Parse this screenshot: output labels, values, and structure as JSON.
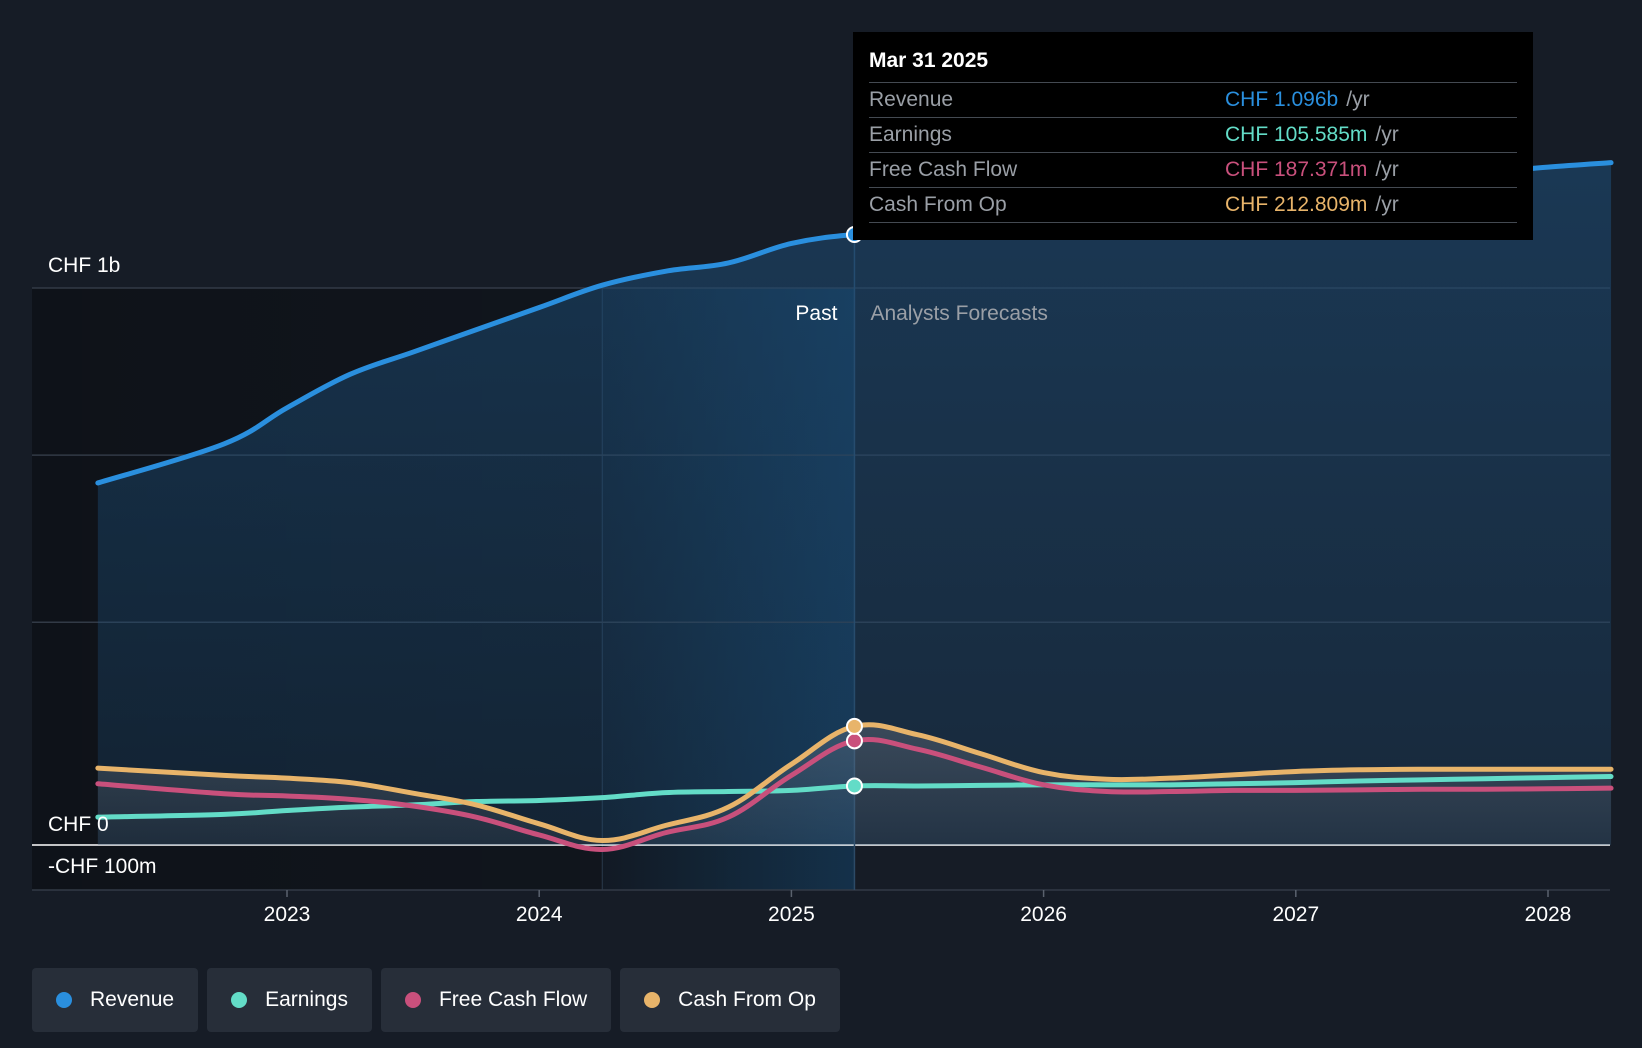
{
  "colors": {
    "revenue": "#2a8fde",
    "earnings": "#63dcc7",
    "free_cash_flow": "#c9507c",
    "cash_from_op": "#e8b46a",
    "background": "#161c26"
  },
  "tooltip": {
    "date": "Mar 31 2025",
    "unit": "/yr",
    "rows": [
      {
        "label": "Revenue",
        "value": "CHF 1.096b",
        "color": "#2a8fde"
      },
      {
        "label": "Earnings",
        "value": "CHF 105.585m",
        "color": "#63dcc7"
      },
      {
        "label": "Free Cash Flow",
        "value": "CHF 187.371m",
        "color": "#c9507c"
      },
      {
        "label": "Cash From Op",
        "value": "CHF 212.809m",
        "color": "#e8b46a"
      }
    ]
  },
  "legend": [
    {
      "label": "Revenue",
      "color": "#2a8fde",
      "icon": "revenue-dot-icon"
    },
    {
      "label": "Earnings",
      "color": "#63dcc7",
      "icon": "earnings-dot-icon"
    },
    {
      "label": "Free Cash Flow",
      "color": "#c9507c",
      "icon": "free-cash-flow-dot-icon"
    },
    {
      "label": "Cash From Op",
      "color": "#e8b46a",
      "icon": "cash-from-op-dot-icon"
    }
  ],
  "chart_data": {
    "type": "line",
    "y_unit": "CHF m",
    "ylim": [
      -100,
      1300
    ],
    "y_ticks": [
      {
        "value": 1000,
        "label": "CHF 1b"
      },
      {
        "value": 0,
        "label": "CHF 0"
      },
      {
        "value": -100,
        "label": "-CHF 100m"
      }
    ],
    "x_range": [
      2022.0,
      2028.25
    ],
    "x_ticks": [
      "2023",
      "2024",
      "2025",
      "2026",
      "2027",
      "2028"
    ],
    "x_tick_values": [
      2023,
      2024,
      2025,
      2026,
      2027,
      2028
    ],
    "past_label": "Past",
    "forecast_label": "Analysts Forecasts",
    "divider_x": 2025.25,
    "highlight_start_x": 2024.25,
    "grid": true,
    "legend_position": "bottom-left",
    "series": [
      {
        "name": "Revenue",
        "key": "revenue",
        "x": [
          2022.25,
          2022.75,
          2023.0,
          2023.25,
          2023.5,
          2023.75,
          2024.0,
          2024.25,
          2024.5,
          2024.75,
          2025.0,
          2025.25,
          2025.5,
          2025.75,
          2026.0,
          2026.25,
          2026.5,
          2026.75,
          2027.0,
          2027.25,
          2027.5,
          2027.75,
          2028.0,
          2028.25
        ],
        "y": [
          650,
          720,
          785,
          845,
          885,
          925,
          965,
          1005,
          1030,
          1045,
          1080,
          1096,
          1100,
          1102,
          1104,
          1110,
          1123,
          1142,
          1163,
          1183,
          1196,
          1207,
          1217,
          1225
        ]
      },
      {
        "name": "Earnings",
        "key": "earnings",
        "x": [
          2022.25,
          2022.75,
          2023.0,
          2023.25,
          2023.5,
          2023.75,
          2024.0,
          2024.25,
          2024.5,
          2024.75,
          2025.0,
          2025.25,
          2025.5,
          2025.75,
          2026.0,
          2026.25,
          2026.5,
          2026.75,
          2027.0,
          2027.25,
          2027.5,
          2027.75,
          2028.0,
          2028.25
        ],
        "y": [
          50,
          55,
          62,
          68,
          72,
          78,
          80,
          85,
          94,
          96,
          98,
          106,
          106,
          107,
          108,
          108,
          108,
          110,
          112,
          115,
          117,
          119,
          121,
          123
        ]
      },
      {
        "name": "Free Cash Flow",
        "key": "free_cash_flow",
        "x": [
          2022.25,
          2022.75,
          2023.0,
          2023.25,
          2023.5,
          2023.75,
          2024.0,
          2024.25,
          2024.5,
          2024.75,
          2025.0,
          2025.25,
          2025.5,
          2025.75,
          2026.0,
          2026.25,
          2026.5,
          2026.75,
          2027.0,
          2027.25,
          2027.5,
          2027.75,
          2028.0,
          2028.25
        ],
        "y": [
          110,
          92,
          88,
          82,
          70,
          50,
          18,
          -8,
          22,
          50,
          125,
          187,
          172,
          140,
          108,
          96,
          96,
          98,
          98,
          99,
          100,
          100,
          101,
          102
        ]
      },
      {
        "name": "Cash From Op",
        "key": "cash_from_op",
        "x": [
          2022.25,
          2022.75,
          2023.0,
          2023.25,
          2023.5,
          2023.75,
          2024.0,
          2024.25,
          2024.5,
          2024.75,
          2025.0,
          2025.25,
          2025.5,
          2025.75,
          2026.0,
          2026.25,
          2026.5,
          2026.75,
          2027.0,
          2027.25,
          2027.5,
          2027.75,
          2028.0,
          2028.25
        ],
        "y": [
          138,
          125,
          120,
          112,
          93,
          72,
          38,
          8,
          35,
          68,
          145,
          213,
          198,
          164,
          130,
          118,
          120,
          126,
          132,
          135,
          136,
          136,
          136,
          136
        ]
      }
    ]
  }
}
